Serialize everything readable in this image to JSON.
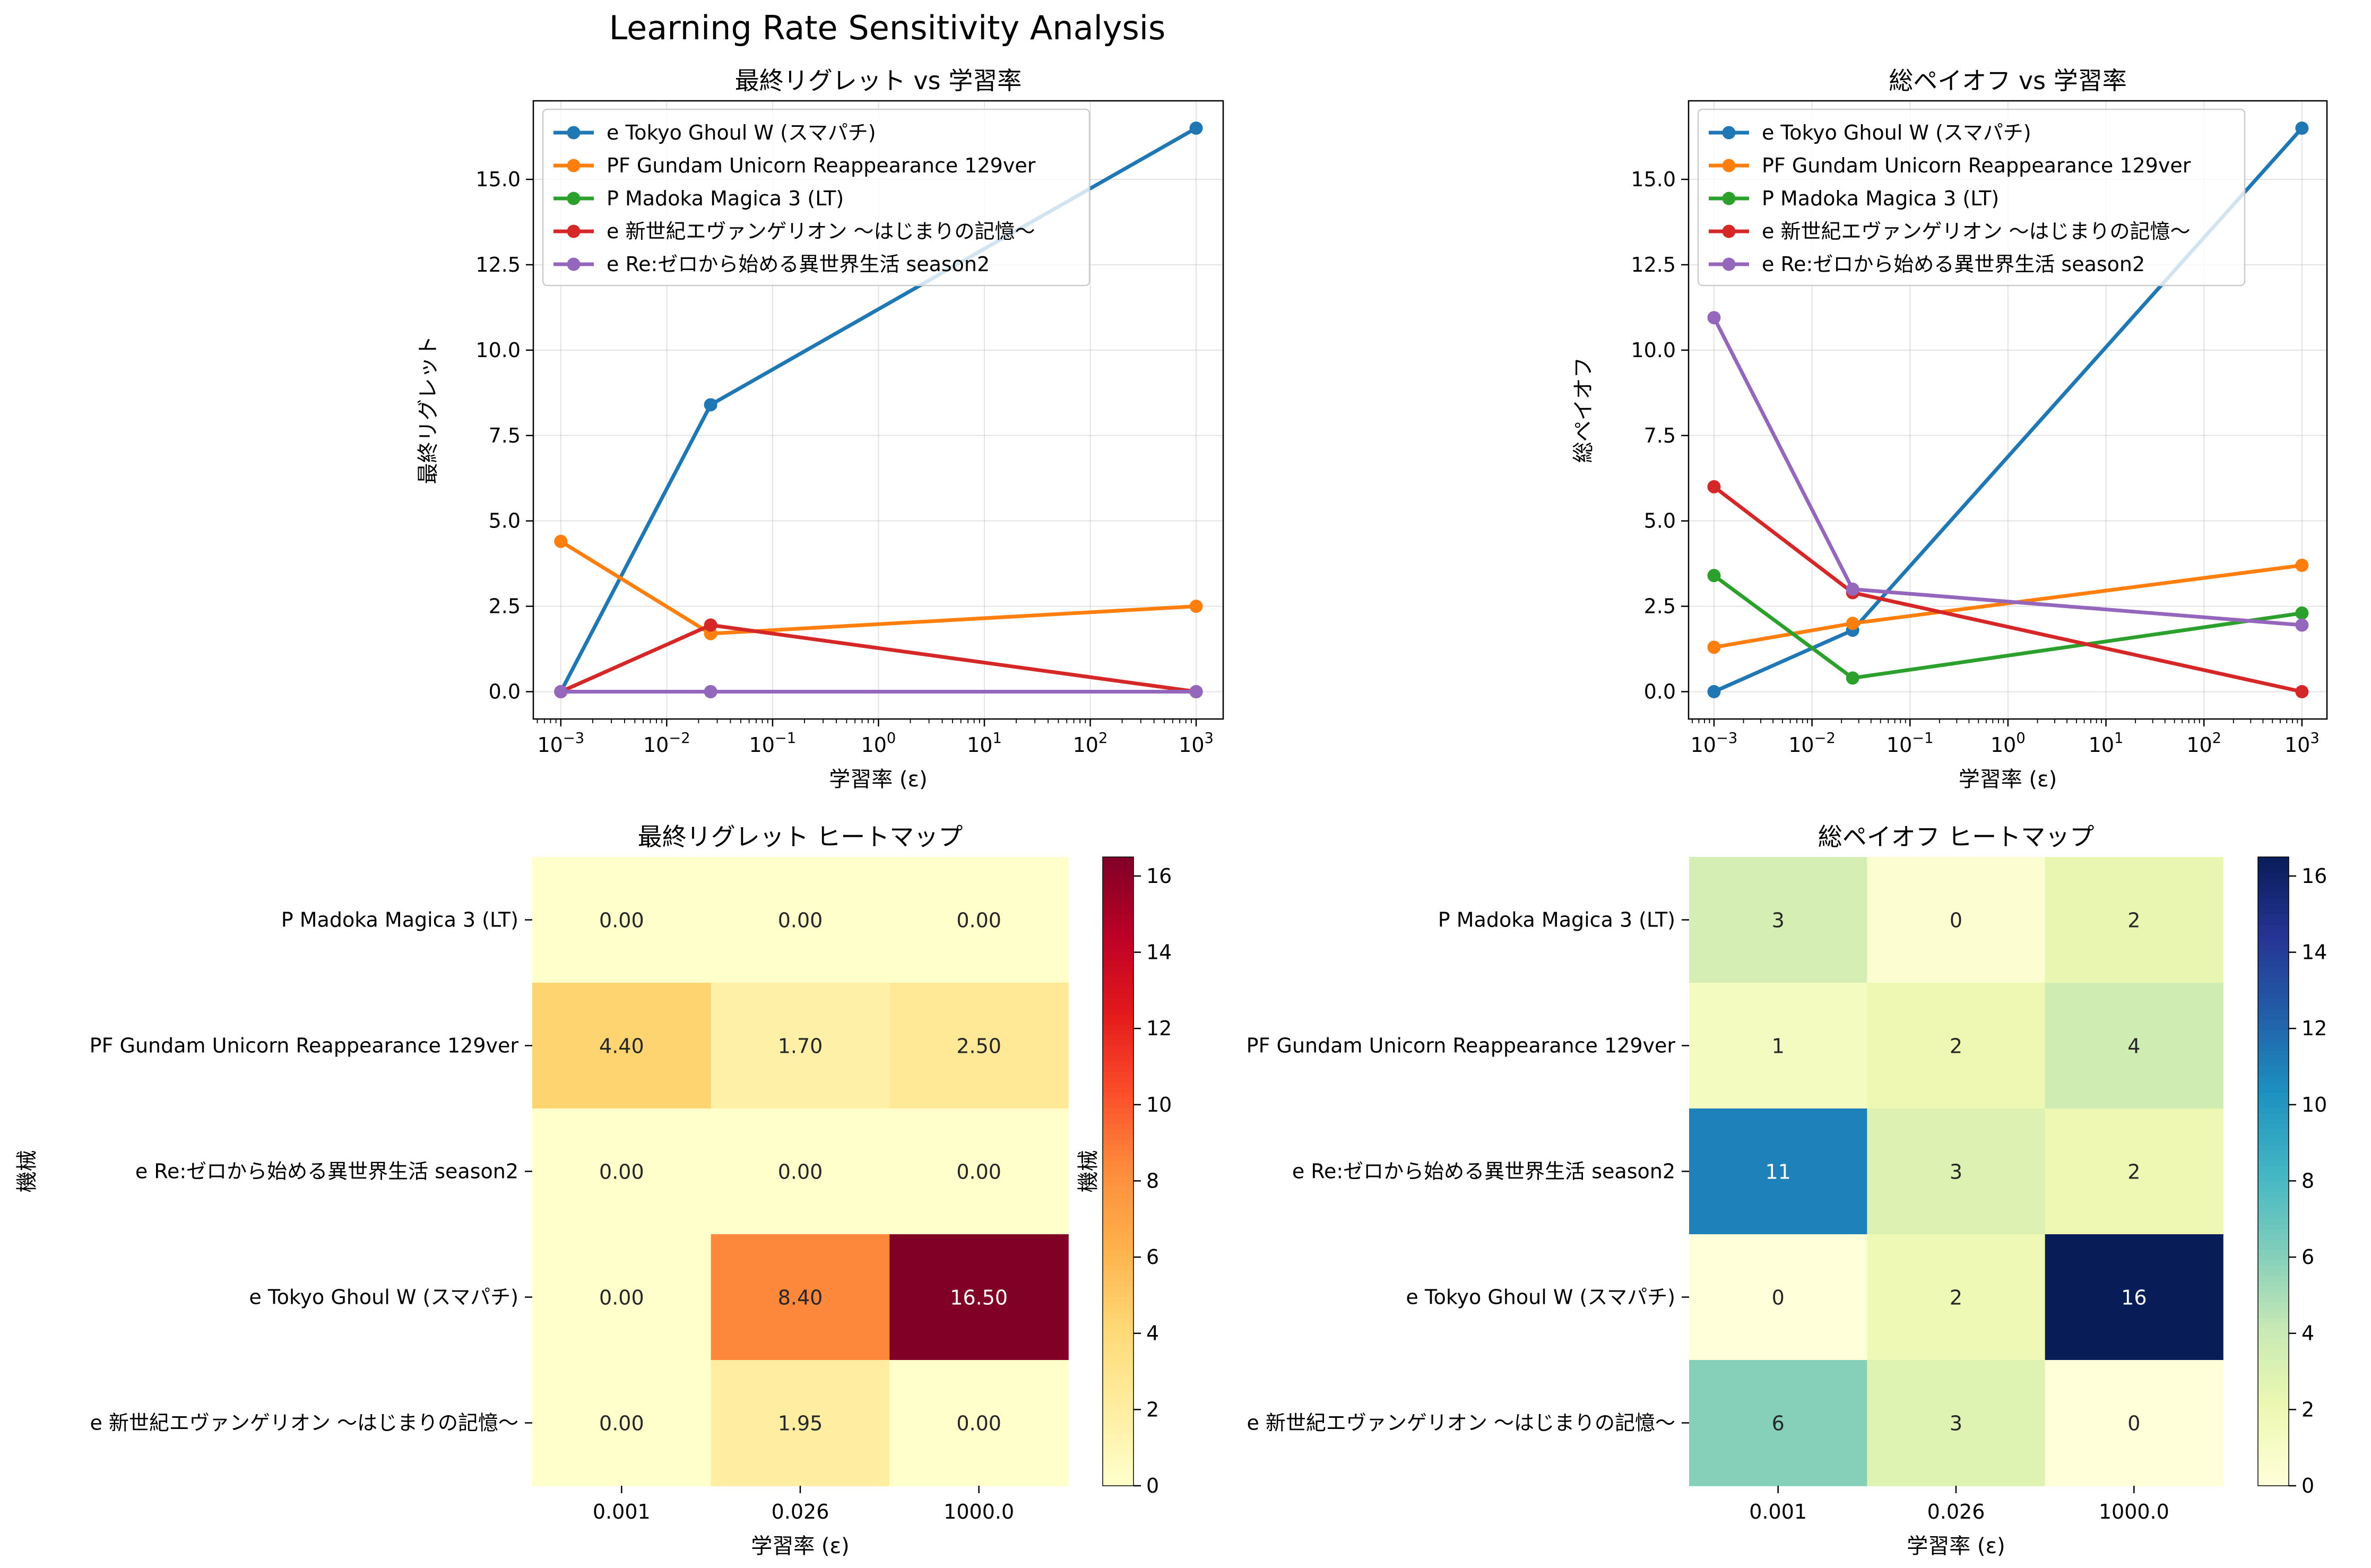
{
  "suptitle": "Learning Rate Sensitivity Analysis",
  "colors": {
    "Tokyo": "#1f77b4",
    "Gundam": "#ff7f0e",
    "Madoka": "#2ca02c",
    "Eva": "#d62728",
    "ReZero": "#9467bd"
  },
  "chart_data": [
    {
      "type": "line",
      "title": "最終リグレット vs 学習率",
      "xlabel": "学習率 (ε)",
      "ylabel": "最終リグレット",
      "xscale": "log",
      "xlim": [
        0.00055,
        1800
      ],
      "ylim": [
        -0.8,
        17.3
      ],
      "xticks": [
        "10^-3",
        "10^-2",
        "10^-1",
        "10^0",
        "10^1",
        "10^2",
        "10^3"
      ],
      "yticks": [
        "0.0",
        "2.5",
        "5.0",
        "7.5",
        "10.0",
        "12.5",
        "15.0"
      ],
      "grid": true,
      "legend": "upper-left",
      "x": [
        0.001,
        0.026,
        1000.0
      ],
      "series": [
        {
          "name": "e Tokyo Ghoul W (スマパチ)",
          "color_key": "Tokyo",
          "values": [
            0.0,
            8.4,
            16.5
          ]
        },
        {
          "name": "PF Gundam Unicorn Reappearance 129ver",
          "color_key": "Gundam",
          "values": [
            4.4,
            1.7,
            2.5
          ]
        },
        {
          "name": "P Madoka Magica 3 (LT)",
          "color_key": "Madoka",
          "values": [
            0.0,
            0.0,
            0.0
          ]
        },
        {
          "name": "e 新世紀エヴァンゲリオン 〜はじまりの記憶〜",
          "color_key": "Eva",
          "values": [
            0.0,
            1.95,
            0.0
          ]
        },
        {
          "name": "e Re:ゼロから始める異世界生活 season2",
          "color_key": "ReZero",
          "values": [
            0.0,
            0.0,
            0.0
          ]
        }
      ]
    },
    {
      "type": "line",
      "title": "総ペイオフ vs 学習率",
      "xlabel": "学習率 (ε)",
      "ylabel": "総ペイオフ",
      "xscale": "log",
      "xlim": [
        0.00055,
        1800
      ],
      "ylim": [
        -0.8,
        17.3
      ],
      "xticks": [
        "10^-3",
        "10^-2",
        "10^-1",
        "10^0",
        "10^1",
        "10^2",
        "10^3"
      ],
      "yticks": [
        "0.0",
        "2.5",
        "5.0",
        "7.5",
        "10.0",
        "12.5",
        "15.0"
      ],
      "grid": true,
      "legend": "upper-left",
      "x": [
        0.001,
        0.026,
        1000.0
      ],
      "series": [
        {
          "name": "e Tokyo Ghoul W (スマパチ)",
          "color_key": "Tokyo",
          "values": [
            0.0,
            1.8,
            16.5
          ]
        },
        {
          "name": "PF Gundam Unicorn Reappearance 129ver",
          "color_key": "Gundam",
          "values": [
            1.3,
            2.0,
            3.7
          ]
        },
        {
          "name": "P Madoka Magica 3 (LT)",
          "color_key": "Madoka",
          "values": [
            3.4,
            0.4,
            2.3
          ]
        },
        {
          "name": "e 新世紀エヴァンゲリオン 〜はじまりの記憶〜",
          "color_key": "Eva",
          "values": [
            6.0,
            2.9,
            0.0
          ]
        },
        {
          "name": "e Re:ゼロから始める異世界生活 season2",
          "color_key": "ReZero",
          "values": [
            10.95,
            3.0,
            1.95
          ]
        }
      ]
    },
    {
      "type": "heatmap",
      "title": "最終リグレット ヒートマップ",
      "xlabel": "学習率 (ε)",
      "ylabel": "機械",
      "colorbar_label": "機械",
      "colormap": "YlOrRd",
      "vmin": 0,
      "vmax": 16.5,
      "colorbar_ticks": [
        "0",
        "2",
        "4",
        "6",
        "8",
        "10",
        "12",
        "14",
        "16"
      ],
      "x_categories": [
        "0.001",
        "0.026",
        "1000.0"
      ],
      "y_categories": [
        "P Madoka Magica 3 (LT)",
        "PF Gundam Unicorn Reappearance 129ver",
        "e Re:ゼロから始める異世界生活 season2",
        "e Tokyo Ghoul W (スマパチ)",
        "e 新世紀エヴァンゲリオン 〜はじまりの記憶〜"
      ],
      "values": [
        [
          0.0,
          0.0,
          0.0
        ],
        [
          4.4,
          1.7,
          2.5
        ],
        [
          0.0,
          0.0,
          0.0
        ],
        [
          0.0,
          8.4,
          16.5
        ],
        [
          0.0,
          1.95,
          0.0
        ]
      ],
      "annotations": [
        [
          "0.00",
          "0.00",
          "0.00"
        ],
        [
          "4.40",
          "1.70",
          "2.50"
        ],
        [
          "0.00",
          "0.00",
          "0.00"
        ],
        [
          "0.00",
          "8.40",
          "16.50"
        ],
        [
          "0.00",
          "1.95",
          "0.00"
        ]
      ]
    },
    {
      "type": "heatmap",
      "title": "総ペイオフ ヒートマップ",
      "xlabel": "学習率 (ε)",
      "ylabel": "",
      "colorbar_label": "",
      "colormap": "YlGnBu",
      "vmin": 0,
      "vmax": 16.5,
      "colorbar_ticks": [
        "0",
        "2",
        "4",
        "6",
        "8",
        "10",
        "12",
        "14",
        "16"
      ],
      "x_categories": [
        "0.001",
        "0.026",
        "1000.0"
      ],
      "y_categories": [
        "P Madoka Magica 3 (LT)",
        "PF Gundam Unicorn Reappearance 129ver",
        "e Re:ゼロから始める異世界生活 season2",
        "e Tokyo Ghoul W (スマパチ)",
        "e 新世紀エヴァンゲリオン 〜はじまりの記憶〜"
      ],
      "values": [
        [
          3.4,
          0.4,
          2.3
        ],
        [
          1.3,
          2.0,
          3.7
        ],
        [
          10.95,
          3.0,
          1.95
        ],
        [
          0.0,
          1.8,
          16.5
        ],
        [
          6.0,
          2.9,
          0.0
        ]
      ],
      "annotations": [
        [
          "3",
          "0",
          "2"
        ],
        [
          "1",
          "2",
          "4"
        ],
        [
          "11",
          "3",
          "2"
        ],
        [
          "0",
          "2",
          "16"
        ],
        [
          "6",
          "3",
          "0"
        ]
      ]
    }
  ]
}
